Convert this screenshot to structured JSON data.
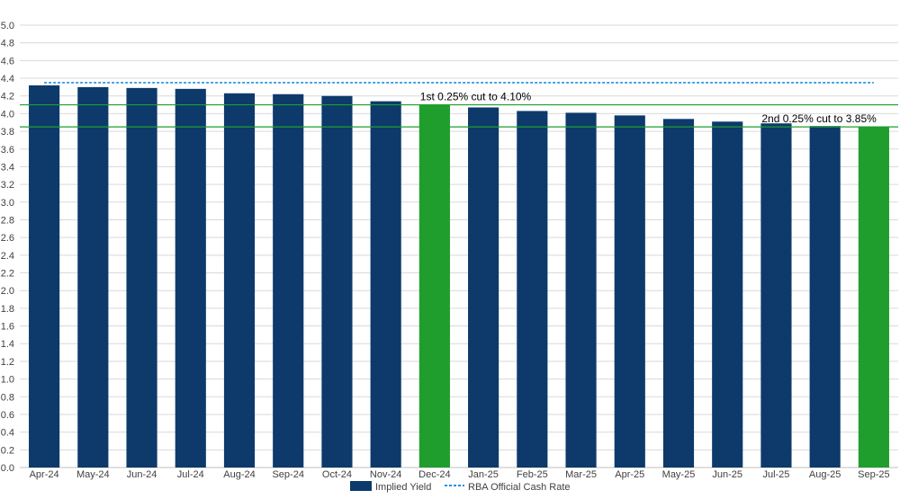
{
  "chart_data": {
    "type": "bar",
    "title": "",
    "xlabel": "",
    "ylabel": "",
    "ylim": [
      0,
      5.0
    ],
    "ytick_step": 0.2,
    "grid": true,
    "legend_position": "bottom",
    "categories": [
      "Apr-24",
      "May-24",
      "Jun-24",
      "Jul-24",
      "Aug-24",
      "Sep-24",
      "Oct-24",
      "Nov-24",
      "Dec-24",
      "Jan-25",
      "Feb-25",
      "Mar-25",
      "Apr-25",
      "May-25",
      "Jun-25",
      "Jul-25",
      "Aug-25",
      "Sep-25"
    ],
    "series": [
      {
        "name": "Implied Yield",
        "type": "bar",
        "color": "#0d3a6b",
        "highlight_color": "#1f9e2e",
        "highlight_categories": [
          "Dec-24",
          "Sep-25"
        ],
        "values": [
          4.32,
          4.3,
          4.29,
          4.28,
          4.23,
          4.22,
          4.2,
          4.14,
          4.1,
          4.07,
          4.03,
          4.01,
          3.98,
          3.94,
          3.91,
          3.89,
          3.86,
          3.85
        ]
      },
      {
        "name": "RBA Official Cash Rate",
        "type": "line",
        "style": "dashed",
        "color": "#1e90e0",
        "value": 4.35
      }
    ],
    "reference_lines": [
      {
        "value": 4.1,
        "color": "#1f9e2e",
        "label": "1st 0.25% cut to 4.10%",
        "label_anchor_category": "Dec-24"
      },
      {
        "value": 3.85,
        "color": "#1f9e2e",
        "label": "2nd 0.25% cut to 3.85%",
        "label_anchor_category": "Jul-25"
      }
    ]
  }
}
